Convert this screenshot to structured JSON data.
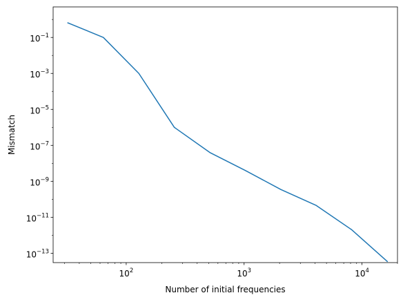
{
  "chart_data": {
    "type": "line",
    "title": "",
    "xlabel": "Number of initial frequencies",
    "ylabel": "Mismatch",
    "xscale": "log",
    "yscale": "log",
    "xlim": [
      24,
      20000
    ],
    "ylim": [
      3e-14,
      5
    ],
    "grid": false,
    "legend": "none",
    "x": [
      32,
      64,
      128,
      256,
      512,
      1024,
      2048,
      4096,
      8192,
      16384
    ],
    "series": [
      {
        "values": [
          0.65,
          0.1,
          0.001,
          1e-06,
          4e-08,
          4e-09,
          3.5e-10,
          4.5e-11,
          2e-12,
          3.5e-14
        ],
        "color": "#1f77b4"
      }
    ],
    "xticks": [
      {
        "value": 100,
        "base": "10",
        "exp": "2"
      },
      {
        "value": 1000,
        "base": "10",
        "exp": "3"
      },
      {
        "value": 10000,
        "base": "10",
        "exp": "4"
      }
    ],
    "yticks": [
      {
        "value": 0.1,
        "base": "10",
        "exp": "−1"
      },
      {
        "value": 0.001,
        "base": "10",
        "exp": "−3"
      },
      {
        "value": 1e-05,
        "base": "10",
        "exp": "−5"
      },
      {
        "value": 1e-07,
        "base": "10",
        "exp": "−7"
      },
      {
        "value": 1e-09,
        "base": "10",
        "exp": "−9"
      },
      {
        "value": 1e-11,
        "base": "10",
        "exp": "−11"
      },
      {
        "value": 1e-13,
        "base": "10",
        "exp": "−13"
      }
    ]
  }
}
